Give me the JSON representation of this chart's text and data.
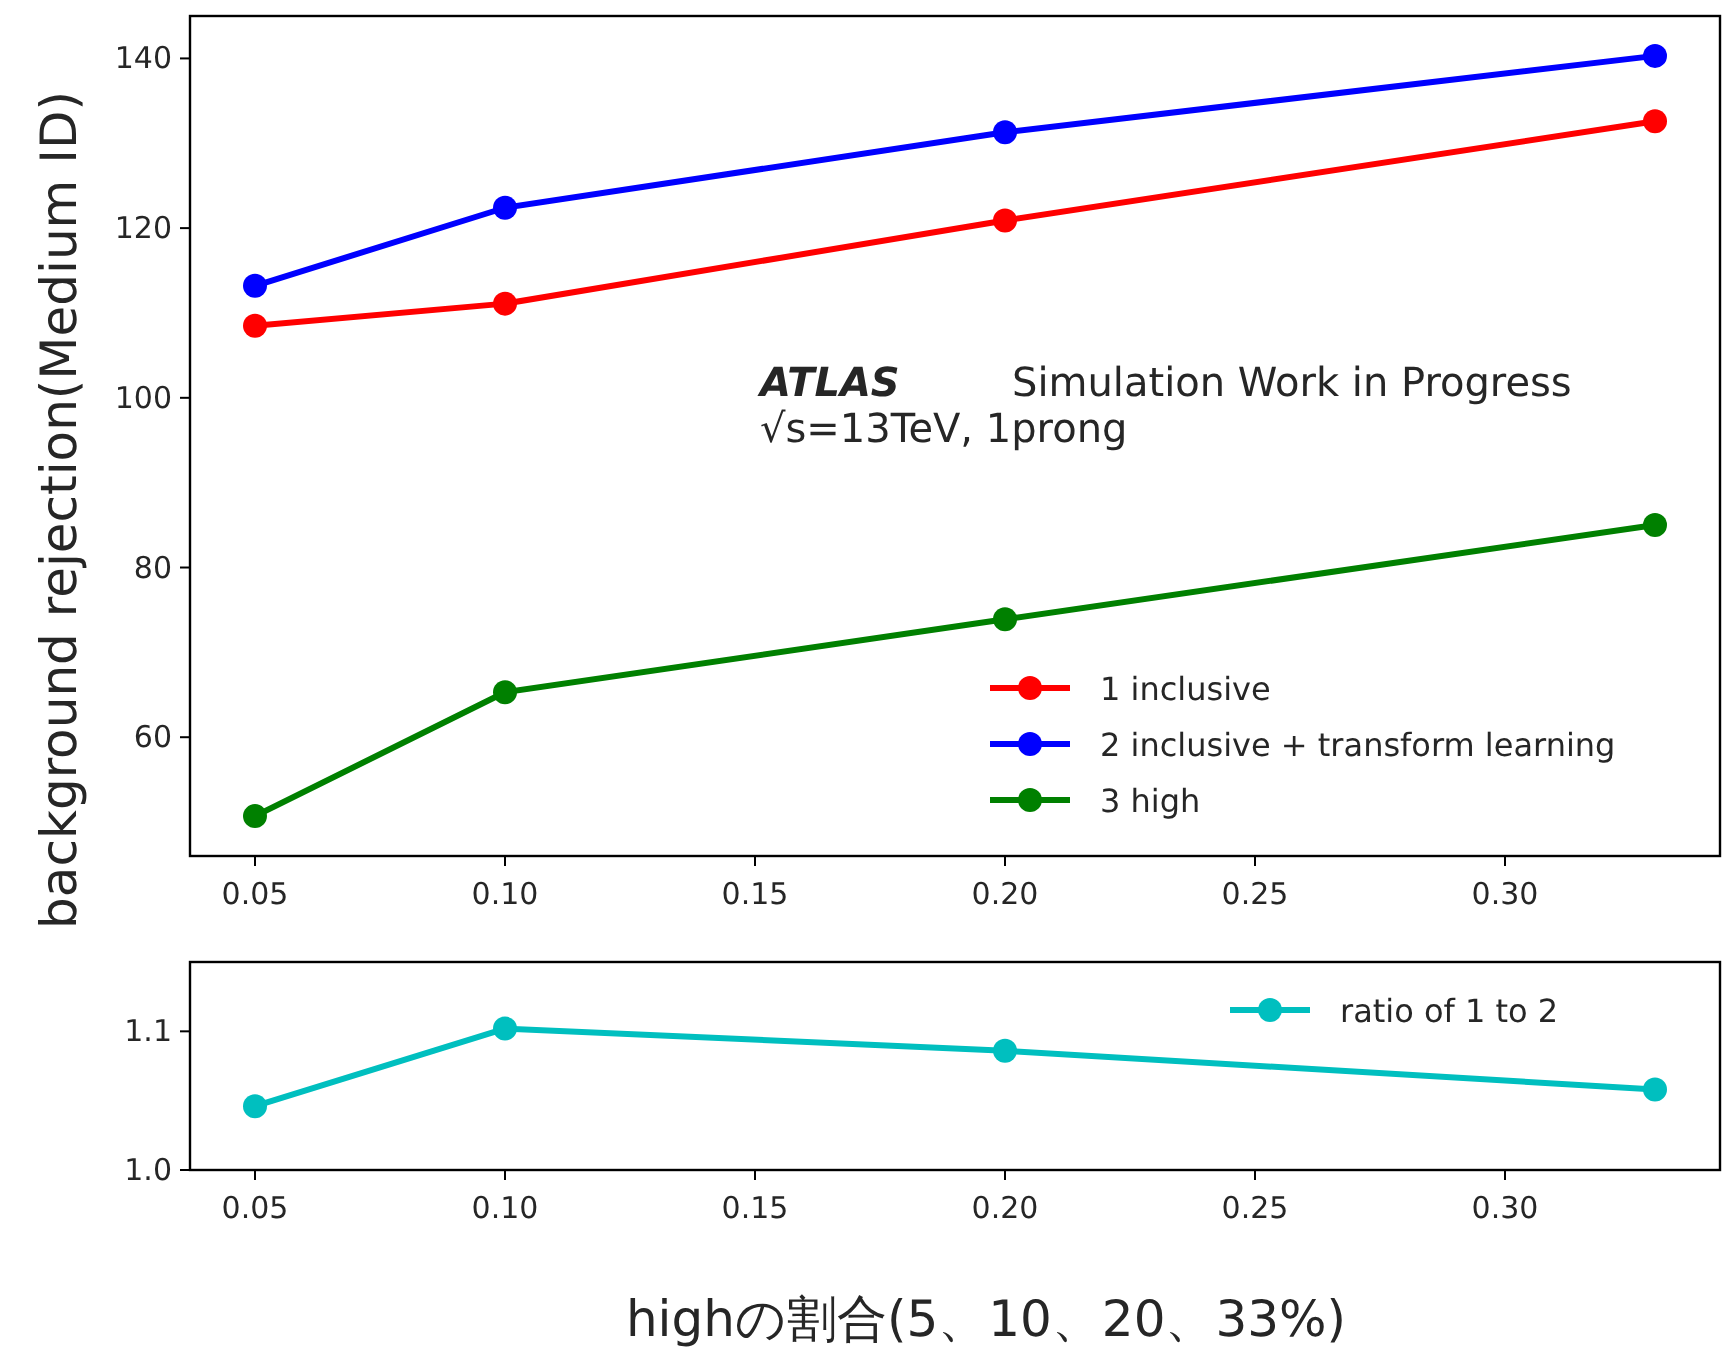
{
  "chart_data": [
    {
      "type": "line",
      "ylabel": "background rejection(Medium ID)",
      "annotations": [
        "ATLAS",
        "Simulation Work in Progress",
        "√s=13TeV, 1prong"
      ],
      "x": [
        0.05,
        0.1,
        0.2,
        0.33
      ],
      "series": [
        {
          "name": "1 inclusive",
          "color": "#ff0000",
          "values": [
            108.5,
            111.1,
            120.9,
            132.6
          ]
        },
        {
          "name": "2 inclusive + transform learning",
          "color": "#0000ff",
          "values": [
            113.2,
            122.4,
            131.3,
            140.3
          ]
        },
        {
          "name": "3 high",
          "color": "#008000",
          "values": [
            50.7,
            65.3,
            73.9,
            85.0
          ]
        }
      ],
      "xlim": [
        0.037,
        0.343
      ],
      "ylim": [
        46,
        145
      ],
      "xticks": [
        0.05,
        {
          "value": 0.1,
          "label": "0.10"
        },
        0.15,
        {
          "value": 0.2,
          "label": "0.20"
        },
        0.25,
        {
          "value": 0.3,
          "label": "0.30"
        }
      ],
      "yticks": [
        60,
        80,
        100,
        120,
        140
      ],
      "legend": "bottom right",
      "marker": "circle",
      "line_style": "solid"
    },
    {
      "type": "line",
      "xlabel": "highの割合(5、10、20、33%)",
      "x": [
        0.05,
        0.1,
        0.2,
        0.33
      ],
      "series": [
        {
          "name": "ratio of 1 to 2",
          "color": "#00bfbf",
          "values": [
            1.046,
            1.102,
            1.086,
            1.058
          ]
        }
      ],
      "xlim": [
        0.037,
        0.343
      ],
      "ylim": [
        1.0,
        1.15
      ],
      "xticks": [
        0.05,
        {
          "value": 0.1,
          "label": "0.10"
        },
        0.15,
        {
          "value": 0.2,
          "label": "0.20"
        },
        0.25,
        {
          "value": 0.3,
          "label": "0.30"
        }
      ],
      "yticks": [
        {
          "value": 1.0,
          "label": "1.0"
        },
        1.1
      ],
      "legend": "top right",
      "marker": "circle",
      "line_style": "solid"
    }
  ]
}
